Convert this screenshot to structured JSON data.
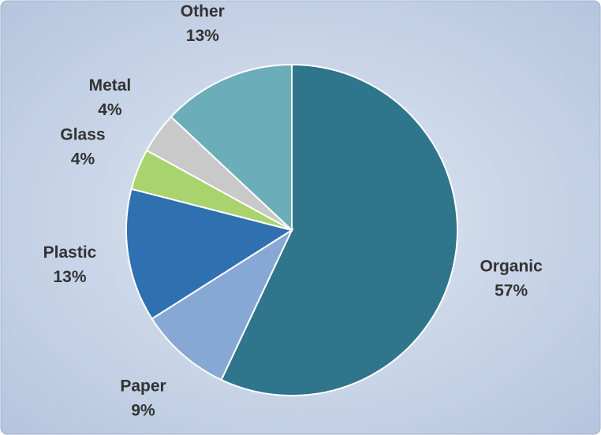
{
  "chart_data": {
    "type": "pie",
    "categories": [
      "Organic",
      "Paper",
      "Plastic",
      "Glass",
      "Metal",
      "Other"
    ],
    "values": [
      57,
      9,
      13,
      4,
      4,
      13
    ],
    "value_labels": [
      "57%",
      "9%",
      "13%",
      "4%",
      "4%",
      "13%"
    ],
    "colors": [
      "#2f758b",
      "#87a8d5",
      "#2e70b0",
      "#a9d36c",
      "#c9c9c9",
      "#6badb9"
    ]
  }
}
